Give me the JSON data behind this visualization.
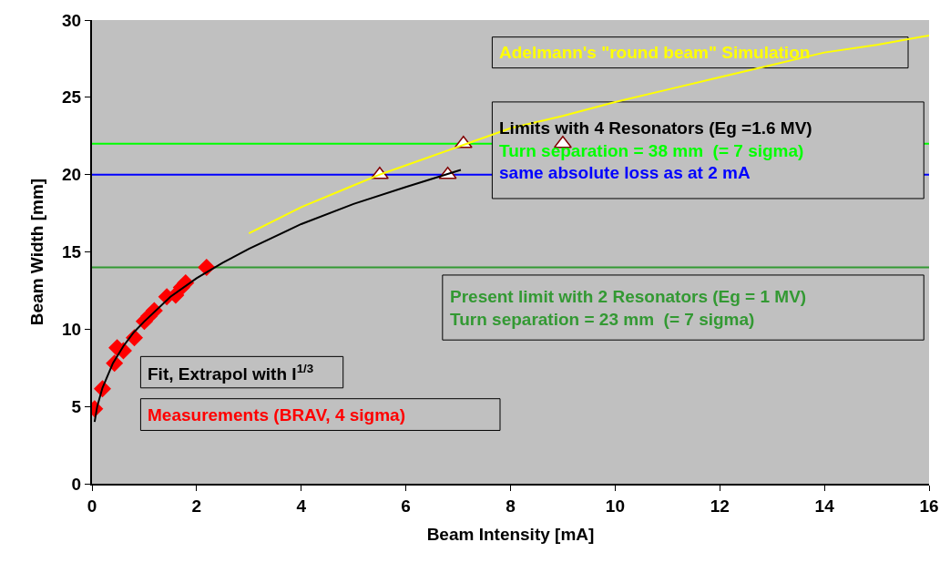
{
  "chart_data": {
    "type": "line",
    "xlabel": "Beam Intensity [mA]",
    "ylabel": "Beam Width [mm]",
    "xlim": [
      0,
      16
    ],
    "xticks": [
      0,
      2,
      4,
      6,
      8,
      10,
      12,
      14,
      16
    ],
    "ylim": [
      0,
      30
    ],
    "yticks": [
      0,
      5,
      10,
      15,
      20,
      25,
      30
    ],
    "grid": false,
    "legend": false,
    "series": [
      {
        "type": "scatter",
        "color": "#ffffff",
        "marker": "triangle",
        "x": [
          5.5,
          6.8,
          7.1,
          9
        ],
        "values": [
          20,
          20,
          22,
          22
        ]
      },
      {
        "name": "Adelmann's \"round beam\" Simulation",
        "color": "#ffff00",
        "x": [
          3,
          4,
          5,
          5.5,
          6,
          7,
          8,
          9,
          10,
          11,
          12,
          13,
          14,
          15,
          16
        ],
        "values": [
          16.2,
          17.9,
          19.3,
          20,
          20.6,
          21.8,
          23,
          23.8,
          24.7,
          25.5,
          26.3,
          27.1,
          27.9,
          28.4,
          29
        ]
      },
      {
        "name": "Measurements (BRAV, 4 sigma)",
        "type": "scatter",
        "color": "#ff0000",
        "marker": "diamond",
        "x": [
          0.05,
          0.2,
          0.43,
          0.48,
          0.6,
          0.81,
          1.0,
          1.09,
          1.19,
          1.43,
          1.6,
          1.71,
          1.79,
          2.19
        ],
        "values": [
          4.85,
          6.15,
          7.8,
          8.8,
          8.6,
          9.45,
          10.5,
          10.85,
          11.2,
          12.1,
          12.2,
          12.7,
          13.0,
          14.0
        ]
      },
      {
        "name": "Fit, Extrapol with I$^{1/3}$",
        "color": "#000000",
        "x": [
          0.05,
          0.1,
          0.2,
          0.4,
          0.6,
          0.8,
          1,
          1.5,
          2,
          2.5,
          3,
          4,
          5,
          6,
          7.05
        ],
        "values": [
          4,
          5.0,
          6.2,
          7.8,
          8.9,
          9.8,
          10.5,
          12.1,
          13.3,
          14.3,
          15.2,
          16.8,
          18.1,
          19.2,
          20.3
        ]
      }
    ],
    "ref_lines": [
      {
        "axis": "y",
        "value": 22,
        "color": "#00ff00"
      },
      {
        "axis": "y",
        "value": 20,
        "color": "#0000ff"
      },
      {
        "axis": "y",
        "value": 14,
        "color": "#339933"
      }
    ],
    "annotations": [
      "Limits with 4 Resonators (Eg =1.6 MV)",
      "Turn separation = 38 mm  (= 7 sigma)",
      "same absolute loss as at 2 mA",
      "Present limit with 2 Resonators (Eg = 1 MV)",
      "Turn separation = 23 mm  (= 7 sigma)"
    ]
  }
}
